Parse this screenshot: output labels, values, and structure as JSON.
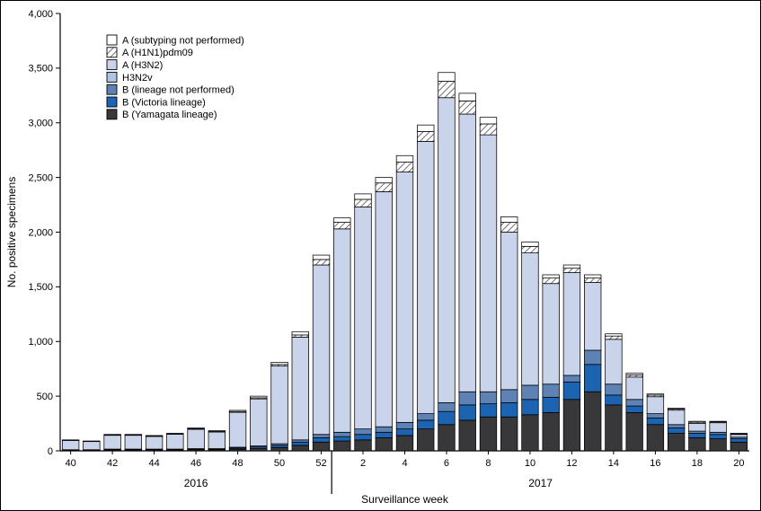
{
  "figure": {
    "ylabel": "No. positive specimens",
    "xlabel": "Surveillance week",
    "year_left": "2016",
    "year_right": "2017"
  },
  "chart_data": {
    "type": "bar",
    "stacked": true,
    "title": "",
    "xlabel": "Surveillance week",
    "ylabel": "No. positive specimens",
    "ylim": [
      0,
      4000
    ],
    "y_tick_step": 500,
    "y_ticks": [
      "0",
      "500",
      "1,000",
      "1,500",
      "2,000",
      "2,500",
      "3,000",
      "3,500",
      "4,000"
    ],
    "grid": "off",
    "legend_position": "top-left-inside",
    "categories": [
      "40",
      "41",
      "42",
      "43",
      "44",
      "45",
      "46",
      "47",
      "48",
      "49",
      "50",
      "51",
      "52",
      "1",
      "2",
      "3",
      "4",
      "5",
      "6",
      "7",
      "8",
      "9",
      "10",
      "11",
      "12",
      "13",
      "14",
      "15",
      "16",
      "17",
      "18",
      "19",
      "20"
    ],
    "x_tick_labels": [
      "40",
      "42",
      "44",
      "46",
      "48",
      "50",
      "52",
      "2",
      "4",
      "6",
      "8",
      "10",
      "12",
      "14",
      "16",
      "18",
      "20"
    ],
    "year_groups": [
      {
        "label": "2016",
        "first_category_index": 0,
        "last_category_index": 12
      },
      {
        "label": "2017",
        "first_category_index": 13,
        "last_category_index": 32
      }
    ],
    "stack_note": "series listed in legend order (top entry first); stacked bottom-to-top in reverse order, B (Yamagata lineage) at the bottom of each bar",
    "series": [
      {
        "name": "A (subtyping not performed)",
        "color": "#ffffff",
        "pattern": "none",
        "values": [
          3,
          3,
          5,
          5,
          5,
          5,
          8,
          8,
          10,
          15,
          20,
          30,
          40,
          40,
          50,
          50,
          60,
          60,
          80,
          70,
          60,
          50,
          40,
          30,
          30,
          30,
          20,
          15,
          10,
          8,
          8,
          5,
          5
        ]
      },
      {
        "name": "A (H1N1)pdm09",
        "color": "#ffffff",
        "pattern": "hatch",
        "values": [
          2,
          2,
          3,
          3,
          3,
          3,
          5,
          5,
          8,
          10,
          15,
          20,
          50,
          60,
          70,
          80,
          90,
          90,
          150,
          120,
          100,
          90,
          60,
          50,
          40,
          40,
          30,
          20,
          15,
          10,
          10,
          8,
          5
        ]
      },
      {
        "name": "A (H3N2)",
        "color": "#c9d3ea",
        "pattern": "none",
        "values": [
          85,
          75,
          126,
          126,
          116,
          136,
          177,
          152,
          319,
          430,
          710,
          940,
          1550,
          1860,
          2030,
          2150,
          2290,
          2490,
          2790,
          2540,
          2350,
          1440,
          1210,
          920,
          940,
          620,
          410,
          205,
          155,
          132,
          72,
          87,
          25
        ]
      },
      {
        "name": "H3N2v",
        "color": "#aec4e2",
        "pattern": "none",
        "values": [
          0,
          0,
          0,
          0,
          0,
          0,
          0,
          0,
          0,
          0,
          0,
          0,
          0,
          0,
          0,
          0,
          0,
          0,
          0,
          0,
          0,
          0,
          0,
          0,
          0,
          0,
          0,
          0,
          0,
          0,
          0,
          0,
          0
        ]
      },
      {
        "name": "B (lineage not performed)",
        "color": "#5e82b4",
        "pattern": "none",
        "values": [
          2,
          2,
          3,
          3,
          3,
          3,
          5,
          5,
          8,
          10,
          15,
          20,
          30,
          40,
          50,
          50,
          60,
          60,
          80,
          120,
          110,
          120,
          130,
          120,
          60,
          130,
          100,
          60,
          40,
          30,
          20,
          20,
          15
        ]
      },
      {
        "name": "B (Victoria lineage)",
        "color": "#1c63b2",
        "pattern": "none",
        "values": [
          3,
          3,
          5,
          5,
          5,
          5,
          5,
          5,
          10,
          15,
          20,
          30,
          40,
          40,
          50,
          50,
          60,
          80,
          120,
          140,
          120,
          130,
          140,
          140,
          160,
          250,
          90,
          60,
          60,
          50,
          40,
          40,
          30
        ]
      },
      {
        "name": "B (Yamagata lineage)",
        "color": "#38383b",
        "pattern": "none",
        "values": [
          5,
          5,
          8,
          8,
          8,
          8,
          10,
          10,
          15,
          20,
          30,
          50,
          80,
          90,
          100,
          120,
          140,
          200,
          240,
          280,
          310,
          310,
          330,
          350,
          470,
          540,
          420,
          350,
          240,
          160,
          120,
          110,
          80
        ]
      }
    ],
    "colors": {
      "segment_stroke": "#000000",
      "axis": "#000000",
      "hatch_line": "#4a4a4a"
    }
  }
}
